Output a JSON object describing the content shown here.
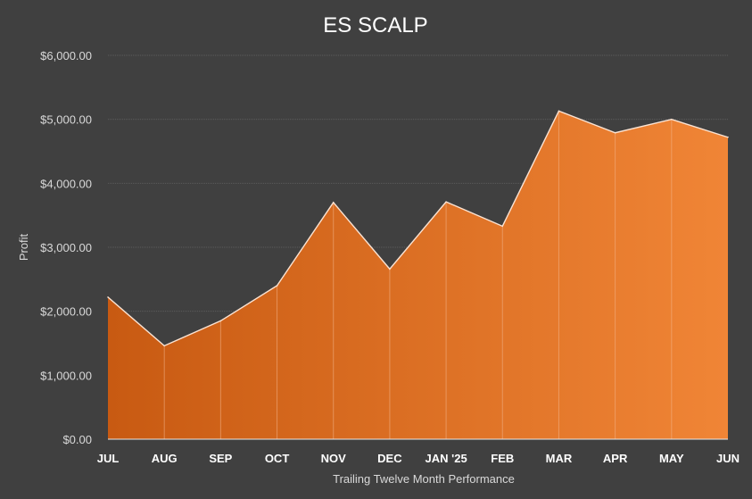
{
  "chart_data": {
    "type": "area",
    "title": "ES SCALP",
    "xlabel": "Trailing Twelve Month Performance",
    "ylabel": "Profit",
    "categories": [
      "JUL",
      "AUG",
      "SEP",
      "OCT",
      "NOV",
      "DEC",
      "JAN '25",
      "FEB",
      "MAR",
      "APR",
      "MAY",
      "JUN"
    ],
    "series": [
      {
        "values": [
          2220,
          1460,
          1850,
          2400,
          3700,
          2660,
          3710,
          3330,
          5130,
          4790,
          5000,
          4720
        ]
      }
    ],
    "yticks": [
      "$0.00",
      "$1,000.00",
      "$2,000.00",
      "$3,000.00",
      "$4,000.00",
      "$5,000.00",
      "$6,000.00"
    ],
    "ylim": [
      0,
      6000
    ],
    "grid": true,
    "legend": "none",
    "colors": {
      "background": "#404040",
      "area_start": "#c85a12",
      "area_end": "#f08536",
      "line": "#fbe3d2",
      "gridline": "#5c5c5c",
      "text": "#d9d9d9"
    }
  }
}
